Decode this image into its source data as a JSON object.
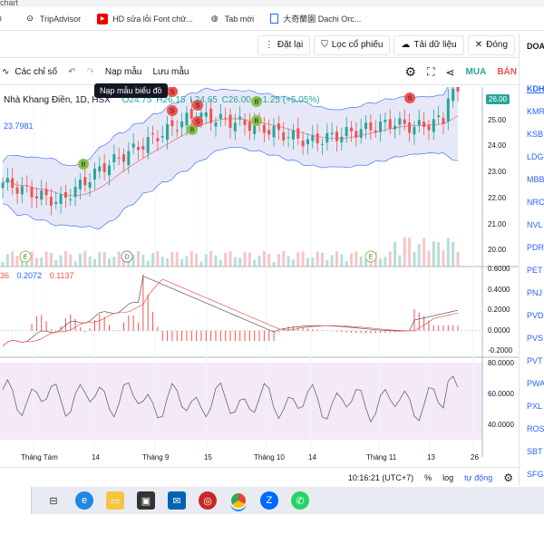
{
  "browser": {
    "title_fragment": "chart",
    "bookmarks": [
      {
        "label": "",
        "icon": "globe-icon"
      },
      {
        "label": "TripAdvisor",
        "icon": "tripadvisor-icon"
      },
      {
        "label": "HD sửa lỗi Font chữ...",
        "icon": "youtube-icon"
      },
      {
        "label": "Tab mới",
        "icon": "globe-icon"
      },
      {
        "label": "大奇蘭園 Dachi Orc...",
        "icon": "page-icon"
      }
    ]
  },
  "top_toolbar": {
    "reset": "Đặt lại",
    "filter": "Lọc cổ phiếu",
    "load": "Tải dữ liệu",
    "close": "Đóng",
    "right_header": "DOA"
  },
  "chart_toolbar": {
    "indicators": "Các chỉ số",
    "load_template": "Nạp mẫu",
    "save_template": "Lưu mẫu",
    "buy": "MUA",
    "sell": "BÁN",
    "tooltip": "Nạp mẫu biểu đồ"
  },
  "legend": {
    "name": "Nhà Khang Điền, 1D, HSX",
    "open": "O24.75",
    "high": "H26.15",
    "low": "L24.65",
    "close": "C26.00",
    "change": "+1.25 (+5.05%)",
    "indicator_value": "23.7981",
    "last_price": "26.00"
  },
  "macd_legend": {
    "v1": "36",
    "v2": "0.2072",
    "v3": "0.1137"
  },
  "axes": {
    "price_ticks": [
      "25.00",
      "24.00",
      "23.00",
      "22.00",
      "21.00",
      "20.00"
    ],
    "macd_ticks": [
      "0.6000",
      "0.4000",
      "0.2000",
      "0.0000",
      "-0.2000"
    ],
    "rsi_ticks": [
      "80.0000",
      "60.0000",
      "40.0000"
    ],
    "time_ticks": [
      "Tháng Tám",
      "14",
      "Tháng 9",
      "15",
      "Tháng 10",
      "14",
      "Tháng 11",
      "13",
      "26"
    ]
  },
  "bottom_bar": {
    "time": "10:16:21 (UTC+7)",
    "percent": "%",
    "log": "log",
    "auto": "tự động"
  },
  "watchlist": [
    "KDH",
    "KMR",
    "KSB",
    "LDG",
    "MBB",
    "NRC",
    "NVL",
    "PDR",
    "PET",
    "PNJ",
    "PVD",
    "PVS",
    "PVT",
    "PWA",
    "PXL",
    "ROS",
    "SBT",
    "SFG"
  ],
  "signals": {
    "buy": "B",
    "sell": "S",
    "dividend": "D",
    "earnings": "E"
  },
  "colors": {
    "up": "#26a69a",
    "down": "#ef5350",
    "band_fill": "#e6e8f7",
    "rsi_fill": "#f3e9f9",
    "accent_blue": "#2962ff"
  }
}
